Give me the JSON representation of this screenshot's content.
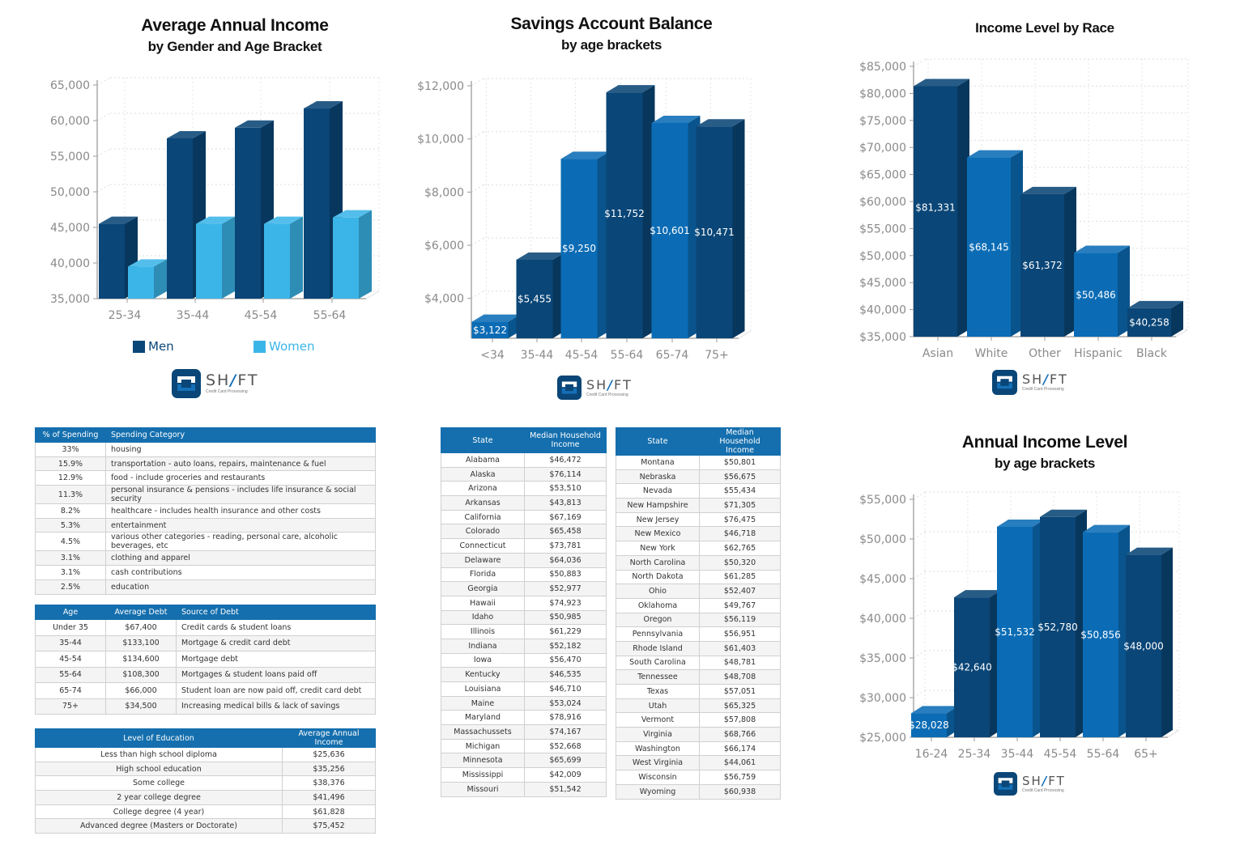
{
  "colors": {
    "dark": "#0a4677",
    "medium": "#0b6cb5",
    "light": "#3bb5e8",
    "header": "#156fae"
  },
  "logo": {
    "brand_pre": "SH",
    "brand_slash": "/",
    "brand_post": "FT",
    "tagline": "Credit Card Processing"
  },
  "chart_data": [
    {
      "type": "bar",
      "title": "Average Annual Income",
      "subtitle": "by Gender and Age Bracket",
      "categories": [
        "25-34",
        "35-44",
        "45-54",
        "55-64"
      ],
      "series": [
        {
          "name": "Men",
          "color": "#0a4677",
          "values": [
            45500,
            57500,
            59000,
            61700
          ]
        },
        {
          "name": "Women",
          "color": "#3bb5e8",
          "values": [
            39500,
            45500,
            45500,
            46400
          ]
        }
      ],
      "ylim": [
        35000,
        65000
      ],
      "yticks": [
        "35,000",
        "40,000",
        "45,000",
        "50,000",
        "55,000",
        "60,000",
        "65,000"
      ],
      "grid": true,
      "legend": "bottom",
      "style": "3d"
    },
    {
      "type": "bar",
      "title": "Savings Account Balance",
      "subtitle": "by age brackets",
      "categories": [
        "<34",
        "35-44",
        "45-54",
        "55-64",
        "65-74",
        "75+"
      ],
      "values": [
        3122,
        5455,
        9250,
        11752,
        10601,
        10471
      ],
      "data_labels": [
        "$3,122",
        "$5,455",
        "$9,250",
        "$11,752",
        "$10,601",
        "$10,471"
      ],
      "bar_colors": [
        "medium",
        "dark",
        "medium",
        "dark",
        "medium",
        "dark"
      ],
      "ylim": [
        2500,
        12000
      ],
      "ytick_values": [
        4000,
        6000,
        8000,
        10000,
        12000
      ],
      "yticks": [
        "$4,000",
        "$6,000",
        "$8,000",
        "$10,000",
        "$12,000"
      ],
      "grid": true,
      "style": "3d"
    },
    {
      "type": "bar",
      "title": "Income Level by Race",
      "subtitle": "",
      "categories": [
        "Asian",
        "White",
        "Other",
        "Hispanic",
        "Black"
      ],
      "values": [
        81331,
        68145,
        61372,
        50486,
        40258
      ],
      "data_labels": [
        "$81,331",
        "$68,145",
        "$61,372",
        "$50,486",
        "$40,258"
      ],
      "bar_colors": [
        "dark",
        "medium",
        "dark",
        "medium",
        "dark"
      ],
      "ylim": [
        35000,
        85000
      ],
      "yticks": [
        "$35,000",
        "$40,000",
        "$45,000",
        "$50,000",
        "$55,000",
        "$60,000",
        "$65,000",
        "$70,000",
        "$75,000",
        "$80,000",
        "$85,000"
      ],
      "grid": true,
      "style": "3d"
    },
    {
      "type": "bar",
      "title": "Annual Income Level",
      "subtitle": "by age brackets",
      "categories": [
        "16-24",
        "25-34",
        "35-44",
        "45-54",
        "55-64",
        "65+"
      ],
      "values": [
        28028,
        42640,
        51532,
        52780,
        50856,
        48000
      ],
      "data_labels": [
        "$28,028",
        "$42,640",
        "$51,532",
        "$52,780",
        "$50,856",
        "$48,000"
      ],
      "bar_colors": [
        "medium",
        "dark",
        "medium",
        "dark",
        "medium",
        "dark"
      ],
      "ylim": [
        25000,
        55000
      ],
      "yticks": [
        "$25,000",
        "$30,000",
        "$35,000",
        "$40,000",
        "$45,000",
        "$50,000",
        "$55,000"
      ],
      "grid": true,
      "style": "3d"
    }
  ],
  "spending": {
    "headers": [
      "% of Spending",
      "Spending Category"
    ],
    "rows": [
      [
        "33%",
        "housing"
      ],
      [
        "15.9%",
        "transportation - auto loans, repairs, maintenance & fuel"
      ],
      [
        "12.9%",
        "food - include groceries and restaurants"
      ],
      [
        "11.3%",
        "personal insurance & pensions - includes life insurance & social security"
      ],
      [
        "8.2%",
        "healthcare - includes health insurance and other costs"
      ],
      [
        "5.3%",
        "entertainment"
      ],
      [
        "4.5%",
        "various other categories - reading, personal care, alcoholic beverages, etc"
      ],
      [
        "3.1%",
        "clothing and apparel"
      ],
      [
        "3.1%",
        "cash contributions"
      ],
      [
        "2.5%",
        "education"
      ]
    ]
  },
  "debt": {
    "headers": [
      "Age",
      "Average Debt",
      "Source of Debt"
    ],
    "rows": [
      [
        "Under 35",
        "$67,400",
        "Credit cards & student loans"
      ],
      [
        "35-44",
        "$133,100",
        "Mortgage & credit card debt"
      ],
      [
        "45-54",
        "$134,600",
        "Mortgage debt"
      ],
      [
        "55-64",
        "$108,300",
        "Mortgages & student loans paid off"
      ],
      [
        "65-74",
        "$66,000",
        "Student loan are now paid off, credit card debt"
      ],
      [
        "75+",
        "$34,500",
        "Increasing medical bills & lack of savings"
      ]
    ]
  },
  "education": {
    "headers": [
      "Level of Education",
      "Average Annual Income"
    ],
    "rows": [
      [
        "Less than high school diploma",
        "$25,636"
      ],
      [
        "High school education",
        "$35,256"
      ],
      [
        "Some college",
        "$38,376"
      ],
      [
        "2 year college degree",
        "$41,496"
      ],
      [
        "College degree (4 year)",
        "$61,828"
      ],
      [
        "Advanced degree (Masters or Doctorate)",
        "$75,452"
      ]
    ]
  },
  "states_left": {
    "headers": [
      "State",
      "Median Household Income"
    ],
    "rows": [
      [
        "Alabama",
        "$46,472"
      ],
      [
        "Alaska",
        "$76,114"
      ],
      [
        "Arizona",
        "$53,510"
      ],
      [
        "Arkansas",
        "$43,813"
      ],
      [
        "California",
        "$67,169"
      ],
      [
        "Colorado",
        "$65,458"
      ],
      [
        "Connecticut",
        "$73,781"
      ],
      [
        "Delaware",
        "$64,036"
      ],
      [
        "Florida",
        "$50,883"
      ],
      [
        "Georgia",
        "$52,977"
      ],
      [
        "Hawaii",
        "$74,923"
      ],
      [
        "Idaho",
        "$50,985"
      ],
      [
        "Illinois",
        "$61,229"
      ],
      [
        "Indiana",
        "$52,182"
      ],
      [
        "Iowa",
        "$56,470"
      ],
      [
        "Kentucky",
        "$46,535"
      ],
      [
        "Louisiana",
        "$46,710"
      ],
      [
        "Maine",
        "$53,024"
      ],
      [
        "Maryland",
        "$78,916"
      ],
      [
        "Massachussets",
        "$74,167"
      ],
      [
        "Michigan",
        "$52,668"
      ],
      [
        "Minnesota",
        "$65,699"
      ],
      [
        "Mississippi",
        "$42,009"
      ],
      [
        "Missouri",
        "$51,542"
      ]
    ]
  },
  "states_right": {
    "headers": [
      "State",
      "Median Household Income"
    ],
    "rows": [
      [
        "Montana",
        "$50,801"
      ],
      [
        "Nebraska",
        "$56,675"
      ],
      [
        "Nevada",
        "$55,434"
      ],
      [
        "New Hampshire",
        "$71,305"
      ],
      [
        "New Jersey",
        "$76,475"
      ],
      [
        "New Mexico",
        "$46,718"
      ],
      [
        "New York",
        "$62,765"
      ],
      [
        "North Carolina",
        "$50,320"
      ],
      [
        "North Dakota",
        "$61,285"
      ],
      [
        "Ohio",
        "$52,407"
      ],
      [
        "Oklahoma",
        "$49,767"
      ],
      [
        "Oregon",
        "$56,119"
      ],
      [
        "Pennsylvania",
        "$56,951"
      ],
      [
        "Rhode Island",
        "$61,403"
      ],
      [
        "South Carolina",
        "$48,781"
      ],
      [
        "Tennessee",
        "$48,708"
      ],
      [
        "Texas",
        "$57,051"
      ],
      [
        "Utah",
        "$65,325"
      ],
      [
        "Vermont",
        "$57,808"
      ],
      [
        "Virginia",
        "$68,766"
      ],
      [
        "Washington",
        "$66,174"
      ],
      [
        "West Virginia",
        "$44,061"
      ],
      [
        "Wisconsin",
        "$56,759"
      ],
      [
        "Wyoming",
        "$60,938"
      ]
    ]
  }
}
